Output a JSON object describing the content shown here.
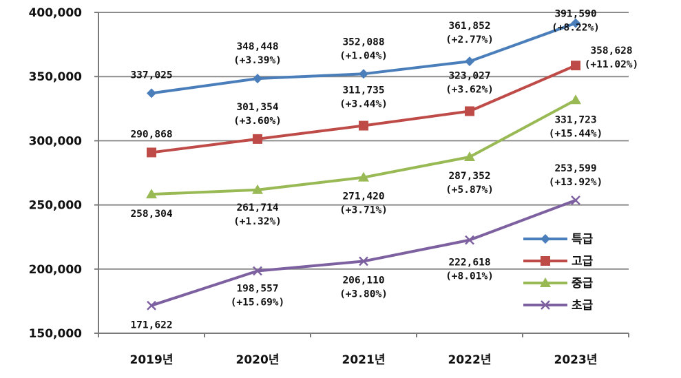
{
  "chart_data": {
    "type": "line",
    "title": "",
    "xlabel": "",
    "ylabel": "",
    "categories": [
      "2019년",
      "2020년",
      "2021년",
      "2022년",
      "2023년"
    ],
    "ylim": [
      150000,
      400000
    ],
    "yticks": [
      150000,
      200000,
      250000,
      300000,
      350000,
      400000
    ],
    "ytick_labels": [
      "150,000",
      "200,000",
      "250,000",
      "300,000",
      "350,000",
      "400,000"
    ],
    "grid": "horizontal",
    "legend_position": "right",
    "series": [
      {
        "name": "특급",
        "color": "#4a7ebb",
        "marker": "diamond",
        "values": [
          337025,
          348448,
          352088,
          361852,
          391590
        ],
        "labels": [
          [
            "337,025"
          ],
          [
            "348,448",
            "(+3.39%)"
          ],
          [
            "352,088",
            "(+1.04%)"
          ],
          [
            "361,852",
            "(+2.77%)"
          ],
          [
            "391,590",
            "(+8.22%)"
          ]
        ]
      },
      {
        "name": "고급",
        "color": "#be4b48",
        "marker": "square",
        "values": [
          290868,
          301354,
          311735,
          323027,
          358628
        ],
        "labels": [
          [
            "290,868"
          ],
          [
            "301,354",
            "(+3.60%)"
          ],
          [
            "311,735",
            "(+3.44%)"
          ],
          [
            "323,027",
            "(+3.62%)"
          ],
          [
            "358,628",
            "(+11.02%)"
          ]
        ]
      },
      {
        "name": "중급",
        "color": "#98b954",
        "marker": "triangle",
        "values": [
          258304,
          261714,
          271420,
          287352,
          331723
        ],
        "labels": [
          [
            "258,304"
          ],
          [
            "261,714",
            "(+1.32%)"
          ],
          [
            "271,420",
            "(+3.71%)"
          ],
          [
            "287,352",
            "(+5.87%)"
          ],
          [
            "331,723",
            "(+15.44%)"
          ]
        ]
      },
      {
        "name": "초급",
        "color": "#7d60a0",
        "marker": "x",
        "values": [
          171622,
          198557,
          206110,
          222618,
          253599
        ],
        "labels": [
          [
            "171,622"
          ],
          [
            "198,557",
            "(+15.69%)"
          ],
          [
            "206,110",
            "(+3.80%)"
          ],
          [
            "222,618",
            "(+8.01%)"
          ],
          [
            "253,599",
            "(+13.92%)"
          ]
        ]
      }
    ]
  }
}
